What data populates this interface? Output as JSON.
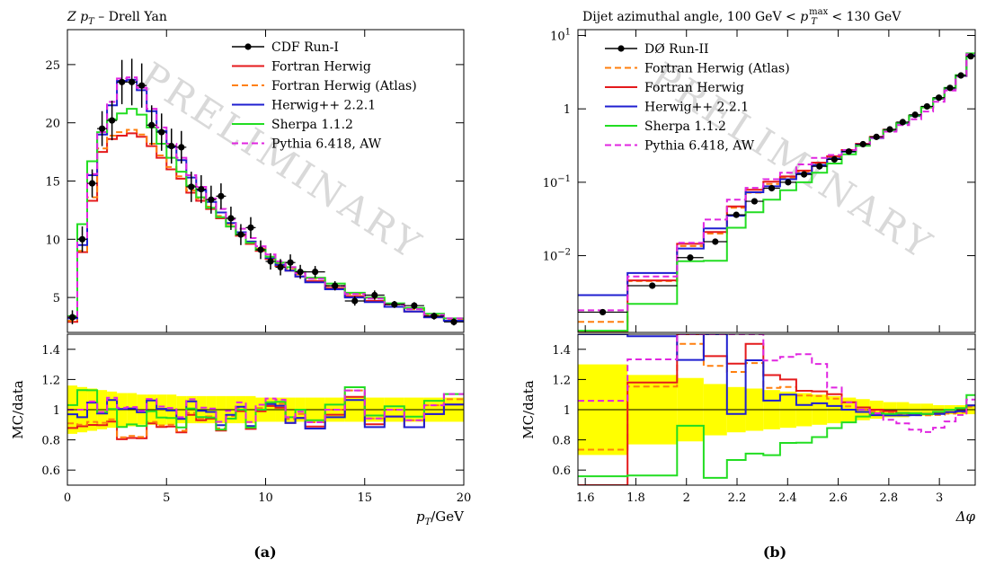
{
  "figure": {
    "captions": [
      "(a)",
      "(b)"
    ],
    "watermark": "PRELIMINARY"
  },
  "chart_data": [
    {
      "type": "line",
      "title": "Z p_T – Drell Yan",
      "title_parts": {
        "main": "Z ",
        "var": "p",
        "sub": "T",
        "rest": " – Drell Yan"
      },
      "xlabel": "p_T/GeV",
      "xlabel_parts": {
        "var": "p",
        "sub": "T",
        "rest": "/GeV"
      },
      "ylabel_ratio": "MC/data",
      "xlim": [
        0,
        20
      ],
      "ylim": [
        2,
        28
      ],
      "ratio_ylim": [
        0.5,
        1.5
      ],
      "log_y": false,
      "x_ticks": [
        0,
        5,
        10,
        15,
        20
      ],
      "y_ticks": [
        5,
        10,
        15,
        20,
        25
      ],
      "ratio_ticks": [
        0.6,
        0.8,
        1,
        1.2,
        1.4
      ],
      "ratio_tick_labels": [
        "0.6",
        "0.8",
        "1",
        "1.2",
        "1.4"
      ],
      "legend_position": "top-right",
      "grid": false,
      "bin_edges": [
        0,
        0.5,
        1,
        1.5,
        2,
        2.5,
        3,
        3.5,
        4,
        4.5,
        5,
        5.5,
        6,
        6.5,
        7,
        7.5,
        8,
        8.5,
        9,
        9.5,
        10,
        10.5,
        11,
        11.5,
        12,
        13,
        14,
        15,
        16,
        17,
        18,
        19,
        20
      ],
      "data": {
        "name": "CDF Run-I",
        "x": [
          0.25,
          0.75,
          1.25,
          1.75,
          2.25,
          2.75,
          3.25,
          3.75,
          4.25,
          4.75,
          5.25,
          5.75,
          6.25,
          6.75,
          7.25,
          7.75,
          8.25,
          8.75,
          9.25,
          9.75,
          10.25,
          10.75,
          11.25,
          11.75,
          12.5,
          13.5,
          14.5,
          15.5,
          16.5,
          17.5,
          18.5,
          19.5
        ],
        "y": [
          3.3,
          10.0,
          14.8,
          19.5,
          20.2,
          23.5,
          23.5,
          23.2,
          19.8,
          19.2,
          18.0,
          17.9,
          14.5,
          14.3,
          13.4,
          13.7,
          11.8,
          10.4,
          11.0,
          9.1,
          8.1,
          7.6,
          8.0,
          7.2,
          7.2,
          6.0,
          4.7,
          5.2,
          4.4,
          4.3,
          3.4,
          2.9
        ],
        "err": [
          0.6,
          1.1,
          1.2,
          1.5,
          1.7,
          1.9,
          2.0,
          1.9,
          1.7,
          1.6,
          1.5,
          1.4,
          1.3,
          1.2,
          1.2,
          1.1,
          1.0,
          0.9,
          0.9,
          0.8,
          0.7,
          0.7,
          0.7,
          0.6,
          0.5,
          0.4,
          0.4,
          0.4,
          0.3,
          0.3,
          0.3,
          0.3
        ],
        "color": "#000000"
      },
      "series": [
        {
          "name": "Fortran Herwig",
          "color": "#e41a1c",
          "dash": "solid",
          "values": [
            2.9,
            8.9,
            13.3,
            17.5,
            18.6,
            18.9,
            19.1,
            18.8,
            18.0,
            17.0,
            16.0,
            15.2,
            14.0,
            13.3,
            12.6,
            11.8,
            11.1,
            10.3,
            9.6,
            9.0,
            8.3,
            7.7,
            7.3,
            6.8,
            6.4,
            5.8,
            5.1,
            4.7,
            4.2,
            3.8,
            3.3,
            3.0
          ]
        },
        {
          "name": "Fortran Herwig (Atlas)",
          "color": "#ff7f0e",
          "dash": "dashed",
          "values": [
            3.0,
            9.0,
            13.6,
            17.8,
            18.9,
            19.2,
            19.4,
            19.0,
            18.2,
            17.2,
            16.2,
            15.4,
            14.2,
            13.5,
            12.8,
            12.0,
            11.3,
            10.5,
            9.8,
            9.2,
            8.5,
            7.9,
            7.5,
            7.0,
            6.6,
            6.0,
            5.3,
            4.9,
            4.4,
            4.0,
            3.5,
            3.1
          ]
        },
        {
          "name": "Herwig++ 2.2.1",
          "color": "#1f1fd0",
          "dash": "solid",
          "values": [
            3.2,
            9.5,
            15.5,
            19.0,
            21.5,
            23.6,
            23.7,
            22.8,
            21.0,
            19.3,
            17.9,
            16.8,
            15.3,
            14.2,
            13.2,
            12.3,
            11.4,
            10.6,
            9.8,
            9.1,
            8.4,
            7.8,
            7.3,
            6.8,
            6.3,
            5.7,
            5.0,
            4.6,
            4.2,
            3.8,
            3.3,
            3.0
          ]
        },
        {
          "name": "Sherpa 1.1.2",
          "color": "#22dd22",
          "dash": "solid",
          "values": [
            3.4,
            11.3,
            16.7,
            19.2,
            20.3,
            20.8,
            21.2,
            20.7,
            19.6,
            18.2,
            17.0,
            15.8,
            14.6,
            13.6,
            12.7,
            11.9,
            11.1,
            10.4,
            9.7,
            9.1,
            8.5,
            8.0,
            7.6,
            7.2,
            6.7,
            6.2,
            5.4,
            5.0,
            4.5,
            4.1,
            3.6,
            3.2
          ]
        },
        {
          "name": "Pythia 6.418, AW",
          "color": "#e026e0",
          "dash": "dashed",
          "values": [
            3.3,
            10.0,
            15.6,
            19.2,
            21.8,
            23.8,
            23.9,
            23.0,
            21.2,
            19.6,
            18.2,
            17.0,
            15.5,
            14.5,
            13.5,
            12.6,
            11.7,
            10.9,
            10.1,
            9.4,
            8.7,
            8.1,
            7.6,
            7.1,
            6.6,
            6.0,
            5.3,
            4.9,
            4.4,
            4.0,
            3.5,
            3.2
          ]
        }
      ],
      "ratio_band": [
        0.16,
        0.15,
        0.14,
        0.13,
        0.12,
        0.11,
        0.11,
        0.1,
        0.1,
        0.1,
        0.1,
        0.09,
        0.09,
        0.09,
        0.09,
        0.09,
        0.09,
        0.09,
        0.09,
        0.08,
        0.08,
        0.08,
        0.08,
        0.08,
        0.08,
        0.08,
        0.08,
        0.08,
        0.08,
        0.08,
        0.08,
        0.08
      ]
    },
    {
      "type": "line",
      "title": "Dijet azimuthal angle, 100 GeV < p_T^max < 130 GeV",
      "title_parts": {
        "pre": "Dijet azimuthal angle, 100 GeV < ",
        "var": "p",
        "sub": "T",
        "sup": "max",
        "post": " < 130 GeV"
      },
      "xlabel": "Δφ",
      "ylabel_ratio": "MC/data",
      "xlim": [
        1.571,
        3.1416
      ],
      "log_y": true,
      "ylim": [
        0.0009,
        12
      ],
      "ratio_ylim": [
        0.5,
        1.5
      ],
      "x_ticks": [
        1.6,
        1.8,
        2,
        2.2,
        2.4,
        2.6,
        2.8,
        3
      ],
      "x_tick_labels": [
        "1.6",
        "1.8",
        "2",
        "2.2",
        "2.4",
        "2.6",
        "2.8",
        "3"
      ],
      "y_ticks": [
        0.01,
        0.1,
        1,
        10
      ],
      "y_tick_labels": [
        {
          "base": "10",
          "exp": "−2"
        },
        {
          "base": "10",
          "exp": "−1"
        },
        {
          "base": "1",
          "exp": ""
        },
        {
          "base": "10",
          "exp": "1"
        }
      ],
      "ratio_ticks": [
        0.6,
        0.8,
        1,
        1.2,
        1.4
      ],
      "ratio_tick_labels": [
        "0.6",
        "0.8",
        "1",
        "1.2",
        "1.4"
      ],
      "legend_position": "top-left",
      "grid": false,
      "bin_edges": [
        1.571,
        1.767,
        1.963,
        2.068,
        2.16,
        2.234,
        2.304,
        2.37,
        2.434,
        2.496,
        2.556,
        2.614,
        2.67,
        2.725,
        2.778,
        2.83,
        2.88,
        2.928,
        2.975,
        3.02,
        3.064,
        3.107,
        3.1416
      ],
      "data": {
        "name": "DØ Run-II",
        "x": [
          1.669,
          1.865,
          2.015,
          2.114,
          2.197,
          2.269,
          2.337,
          2.402,
          2.465,
          2.526,
          2.585,
          2.642,
          2.698,
          2.751,
          2.804,
          2.855,
          2.904,
          2.951,
          2.998,
          3.042,
          3.085,
          3.124
        ],
        "y": [
          0.0017,
          0.0039,
          0.0094,
          0.0155,
          0.036,
          0.055,
          0.083,
          0.1,
          0.128,
          0.165,
          0.205,
          0.262,
          0.33,
          0.415,
          0.525,
          0.66,
          0.83,
          1.08,
          1.42,
          1.93,
          2.85,
          5.2
        ],
        "color": "#000000"
      },
      "series": [
        {
          "name": "Fortran Herwig (Atlas)",
          "color": "#ff7f0e",
          "dash": "dashed",
          "values": [
            0.00125,
            0.0045,
            0.0135,
            0.02,
            0.045,
            0.072,
            0.095,
            0.115,
            0.14,
            0.18,
            0.22,
            0.268,
            0.33,
            0.41,
            0.515,
            0.64,
            0.8,
            1.04,
            1.37,
            1.88,
            2.8,
            5.3
          ]
        },
        {
          "name": "Fortran Herwig",
          "color": "#e41a1c",
          "dash": "solid",
          "values": [
            0.00085,
            0.0046,
            0.0145,
            0.021,
            0.047,
            0.079,
            0.102,
            0.12,
            0.144,
            0.185,
            0.226,
            0.275,
            0.335,
            0.415,
            0.52,
            0.645,
            0.81,
            1.05,
            1.39,
            1.9,
            2.82,
            5.35
          ]
        },
        {
          "name": "Herwig++ 2.2.1",
          "color": "#1f1fd0",
          "dash": "solid",
          "values": [
            0.0029,
            0.0058,
            0.0125,
            0.0235,
            0.035,
            0.073,
            0.088,
            0.11,
            0.132,
            0.172,
            0.21,
            0.262,
            0.325,
            0.4,
            0.505,
            0.635,
            0.8,
            1.05,
            1.38,
            1.9,
            2.82,
            5.35
          ]
        },
        {
          "name": "Sherpa 1.1.2",
          "color": "#22dd22",
          "dash": "solid",
          "values": [
            0.00095,
            0.0022,
            0.0084,
            0.0085,
            0.024,
            0.039,
            0.058,
            0.078,
            0.1,
            0.135,
            0.18,
            0.24,
            0.315,
            0.405,
            0.51,
            0.645,
            0.81,
            1.05,
            1.4,
            1.93,
            2.88,
            5.7
          ]
        },
        {
          "name": "Pythia 6.418, AW",
          "color": "#e026e0",
          "dash": "dashed",
          "values": [
            0.0018,
            0.0052,
            0.015,
            0.031,
            0.058,
            0.084,
            0.11,
            0.135,
            0.175,
            0.215,
            0.235,
            0.275,
            0.33,
            0.405,
            0.49,
            0.6,
            0.72,
            0.92,
            1.25,
            1.78,
            2.75,
            5.55
          ]
        }
      ],
      "ratio_band": [
        0.3,
        0.23,
        0.21,
        0.17,
        0.15,
        0.14,
        0.13,
        0.12,
        0.11,
        0.1,
        0.09,
        0.08,
        0.07,
        0.06,
        0.05,
        0.05,
        0.04,
        0.04,
        0.03,
        0.03,
        0.03,
        0.03
      ]
    }
  ]
}
